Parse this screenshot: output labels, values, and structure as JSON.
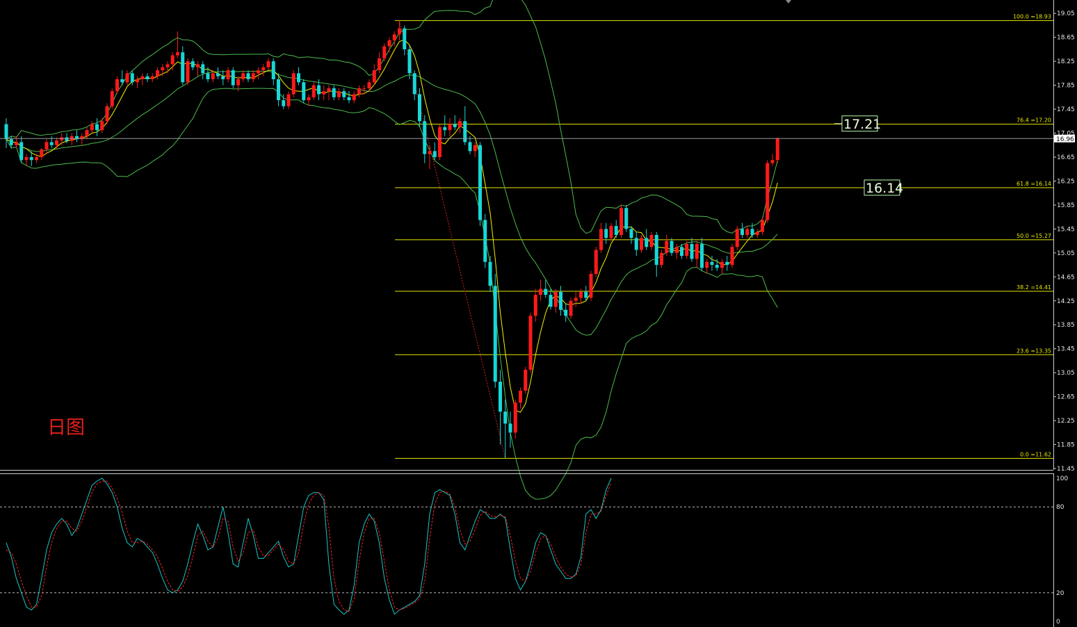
{
  "caption": "日图",
  "colors": {
    "bull": "#ff1a1a",
    "bear": "#19d7d7",
    "bollinger": "#4dbb4d",
    "ma": "#f5f500",
    "fib": "#e8e800",
    "stoch_k": "#19c8c8",
    "stoch_d": "#ff2020",
    "axis_text": "#e6e6e6"
  },
  "chart_data": [
    {
      "type": "candlestick",
      "title": "",
      "ylim": [
        11.45,
        19.25
      ],
      "yticks": [
        "19.05",
        "18.65",
        "18.25",
        "17.85",
        "17.45",
        "17.05",
        "16.65",
        "16.25",
        "15.85",
        "15.45",
        "15.05",
        "14.65",
        "14.25",
        "13.85",
        "13.45",
        "13.05",
        "12.65",
        "12.25",
        "11.85",
        "11.45"
      ],
      "current_price": "16.96",
      "current_price_value": 16.96,
      "fib_levels": [
        {
          "value": 18.93,
          "label": "100.0  =18.93"
        },
        {
          "value": 17.2,
          "label": "76.4  =17.20"
        },
        {
          "value": 16.14,
          "label": "61.8  =16.14"
        },
        {
          "value": 15.27,
          "label": "50.0  =15.27"
        },
        {
          "value": 14.41,
          "label": "38.2  =14.41"
        },
        {
          "value": 13.35,
          "label": "23.6  =13.35"
        },
        {
          "value": 11.62,
          "label": "0.0  =11.62"
        }
      ],
      "price_tags": [
        {
          "text": "17.21",
          "value": 17.21
        },
        {
          "text": "16.14",
          "value": 16.14
        }
      ],
      "candles": [
        [
          17.2,
          17.3,
          16.8,
          16.95
        ],
        [
          16.95,
          17.0,
          16.8,
          16.85
        ],
        [
          16.85,
          17.0,
          16.8,
          16.9
        ],
        [
          16.9,
          17.0,
          16.55,
          16.6
        ],
        [
          16.6,
          16.7,
          16.5,
          16.65
        ],
        [
          16.65,
          16.75,
          16.5,
          16.6
        ],
        [
          16.6,
          16.7,
          16.55,
          16.65
        ],
        [
          16.65,
          16.8,
          16.6,
          16.78
        ],
        [
          16.78,
          16.95,
          16.7,
          16.9
        ],
        [
          16.9,
          17.0,
          16.8,
          16.85
        ],
        [
          16.85,
          16.98,
          16.78,
          16.93
        ],
        [
          16.93,
          17.05,
          16.85,
          16.98
        ],
        [
          16.98,
          17.05,
          16.88,
          16.92
        ],
        [
          16.92,
          17.05,
          16.85,
          17.0
        ],
        [
          17.0,
          17.1,
          16.9,
          16.95
        ],
        [
          16.95,
          17.05,
          16.85,
          17.0
        ],
        [
          17.0,
          17.15,
          16.95,
          17.1
        ],
        [
          17.1,
          17.25,
          17.05,
          17.2
        ],
        [
          17.2,
          17.3,
          17.0,
          17.1
        ],
        [
          17.1,
          17.3,
          17.05,
          17.25
        ],
        [
          17.25,
          17.55,
          17.2,
          17.5
        ],
        [
          17.5,
          17.8,
          17.45,
          17.75
        ],
        [
          17.75,
          18.0,
          17.7,
          17.95
        ],
        [
          17.95,
          18.1,
          17.85,
          17.9
        ],
        [
          17.9,
          18.1,
          17.85,
          18.05
        ],
        [
          18.05,
          18.1,
          17.85,
          17.9
        ],
        [
          17.9,
          18.0,
          17.8,
          17.95
        ],
        [
          17.95,
          18.05,
          17.85,
          18.0
        ],
        [
          18.0,
          18.05,
          17.9,
          17.95
        ],
        [
          17.95,
          18.05,
          17.9,
          18.0
        ],
        [
          18.0,
          18.15,
          17.95,
          18.1
        ],
        [
          18.1,
          18.2,
          18.0,
          18.15
        ],
        [
          18.15,
          18.25,
          18.05,
          18.2
        ],
        [
          18.2,
          18.4,
          18.1,
          18.35
        ],
        [
          18.35,
          18.75,
          18.3,
          18.4
        ],
        [
          18.4,
          18.5,
          17.85,
          17.9
        ],
        [
          17.9,
          18.3,
          17.85,
          18.25
        ],
        [
          18.25,
          18.3,
          18.1,
          18.15
        ],
        [
          18.15,
          18.25,
          18.0,
          18.2
        ],
        [
          18.2,
          18.25,
          17.95,
          18.05
        ],
        [
          18.05,
          18.15,
          17.9,
          17.95
        ],
        [
          17.95,
          18.1,
          17.9,
          18.05
        ],
        [
          18.05,
          18.15,
          17.95,
          18.0
        ],
        [
          18.0,
          18.1,
          17.85,
          17.95
        ],
        [
          17.95,
          18.15,
          17.9,
          18.1
        ],
        [
          18.1,
          18.15,
          17.8,
          17.85
        ],
        [
          17.85,
          18.0,
          17.75,
          17.95
        ],
        [
          17.95,
          18.1,
          17.9,
          18.05
        ],
        [
          18.05,
          18.1,
          17.9,
          17.95
        ],
        [
          17.95,
          18.1,
          17.9,
          18.05
        ],
        [
          18.05,
          18.15,
          17.95,
          18.1
        ],
        [
          18.1,
          18.2,
          18.0,
          18.15
        ],
        [
          18.15,
          18.3,
          18.1,
          18.25
        ],
        [
          18.25,
          18.3,
          17.85,
          17.95
        ],
        [
          17.95,
          18.05,
          17.5,
          17.6
        ],
        [
          17.6,
          17.7,
          17.45,
          17.5
        ],
        [
          17.5,
          17.75,
          17.45,
          17.7
        ],
        [
          17.7,
          18.1,
          17.65,
          18.05
        ],
        [
          18.05,
          18.15,
          17.85,
          17.9
        ],
        [
          17.9,
          17.95,
          17.55,
          17.6
        ],
        [
          17.6,
          17.7,
          17.5,
          17.65
        ],
        [
          17.65,
          17.9,
          17.6,
          17.85
        ],
        [
          17.85,
          17.95,
          17.6,
          17.7
        ],
        [
          17.7,
          17.85,
          17.6,
          17.75
        ],
        [
          17.75,
          17.85,
          17.6,
          17.8
        ],
        [
          17.8,
          17.85,
          17.6,
          17.65
        ],
        [
          17.65,
          17.8,
          17.6,
          17.75
        ],
        [
          17.75,
          17.8,
          17.6,
          17.65
        ],
        [
          17.65,
          17.75,
          17.55,
          17.6
        ],
        [
          17.6,
          17.75,
          17.55,
          17.7
        ],
        [
          17.7,
          17.85,
          17.65,
          17.8
        ],
        [
          17.8,
          17.85,
          17.7,
          17.8
        ],
        [
          17.8,
          17.95,
          17.75,
          17.9
        ],
        [
          17.9,
          18.2,
          17.85,
          18.1
        ],
        [
          18.1,
          18.4,
          18.05,
          18.3
        ],
        [
          18.3,
          18.55,
          18.25,
          18.5
        ],
        [
          18.5,
          18.65,
          18.4,
          18.6
        ],
        [
          18.6,
          18.75,
          18.5,
          18.7
        ],
        [
          18.7,
          18.93,
          18.6,
          18.8
        ],
        [
          18.8,
          18.85,
          18.35,
          18.45
        ],
        [
          18.45,
          18.5,
          17.95,
          18.05
        ],
        [
          18.05,
          18.1,
          17.6,
          17.7
        ],
        [
          17.7,
          17.8,
          17.15,
          17.25
        ],
        [
          17.25,
          17.35,
          16.55,
          16.7
        ],
        [
          16.7,
          16.85,
          16.45,
          16.75
        ],
        [
          16.75,
          16.9,
          16.6,
          16.65
        ],
        [
          16.65,
          17.2,
          16.6,
          17.15
        ],
        [
          17.15,
          17.35,
          17.0,
          17.1
        ],
        [
          17.1,
          17.3,
          17.0,
          17.2
        ],
        [
          17.2,
          17.35,
          17.1,
          17.15
        ],
        [
          17.15,
          17.3,
          17.05,
          17.25
        ],
        [
          17.25,
          17.5,
          16.85,
          16.9
        ],
        [
          16.9,
          17.0,
          16.7,
          16.75
        ],
        [
          16.75,
          16.9,
          16.65,
          16.85
        ],
        [
          16.85,
          16.9,
          15.5,
          15.6
        ],
        [
          15.6,
          15.7,
          14.8,
          14.9
        ],
        [
          14.9,
          15.0,
          14.4,
          14.5
        ],
        [
          14.5,
          14.7,
          12.8,
          12.9
        ],
        [
          12.9,
          13.1,
          11.85,
          12.4
        ],
        [
          12.4,
          12.6,
          11.62,
          12.2
        ],
        [
          12.2,
          12.4,
          11.8,
          12.05
        ],
        [
          12.05,
          12.6,
          11.95,
          12.55
        ],
        [
          12.55,
          12.8,
          12.45,
          12.75
        ],
        [
          12.75,
          13.15,
          12.7,
          13.1
        ],
        [
          13.1,
          14.05,
          13.05,
          14.0
        ],
        [
          14.0,
          14.45,
          13.9,
          14.35
        ],
        [
          14.35,
          14.6,
          14.25,
          14.45
        ],
        [
          14.45,
          14.6,
          14.3,
          14.35
        ],
        [
          14.35,
          14.45,
          14.1,
          14.15
        ],
        [
          14.15,
          14.45,
          14.05,
          14.4
        ],
        [
          14.4,
          14.5,
          14.0,
          14.1
        ],
        [
          14.1,
          14.2,
          13.9,
          14.0
        ],
        [
          14.0,
          14.3,
          13.95,
          14.25
        ],
        [
          14.25,
          14.4,
          14.15,
          14.3
        ],
        [
          14.3,
          14.45,
          14.2,
          14.4
        ],
        [
          14.4,
          14.5,
          14.25,
          14.3
        ],
        [
          14.3,
          14.75,
          14.25,
          14.7
        ],
        [
          14.7,
          15.15,
          14.65,
          15.1
        ],
        [
          15.1,
          15.55,
          15.05,
          15.45
        ],
        [
          15.45,
          15.55,
          15.2,
          15.3
        ],
        [
          15.3,
          15.55,
          15.25,
          15.5
        ],
        [
          15.5,
          15.6,
          15.3,
          15.35
        ],
        [
          15.35,
          15.85,
          15.3,
          15.8
        ],
        [
          15.8,
          15.85,
          15.4,
          15.45
        ],
        [
          15.45,
          15.5,
          15.2,
          15.3
        ],
        [
          15.3,
          15.4,
          15.0,
          15.1
        ],
        [
          15.1,
          15.35,
          15.05,
          15.3
        ],
        [
          15.3,
          15.45,
          15.1,
          15.15
        ],
        [
          15.15,
          15.4,
          15.1,
          15.35
        ],
        [
          15.35,
          15.4,
          14.65,
          14.85
        ],
        [
          14.85,
          15.1,
          14.8,
          15.05
        ],
        [
          15.05,
          15.35,
          15.0,
          15.25
        ],
        [
          15.25,
          15.3,
          15.0,
          15.05
        ],
        [
          15.05,
          15.2,
          14.95,
          15.15
        ],
        [
          15.15,
          15.2,
          14.95,
          15.0
        ],
        [
          15.0,
          15.25,
          14.95,
          15.2
        ],
        [
          15.2,
          15.3,
          14.9,
          14.95
        ],
        [
          14.95,
          15.25,
          14.8,
          15.2
        ],
        [
          15.2,
          15.3,
          14.75,
          14.8
        ],
        [
          14.8,
          14.95,
          14.7,
          14.9
        ],
        [
          14.9,
          15.0,
          14.75,
          14.85
        ],
        [
          14.85,
          14.95,
          14.75,
          14.8
        ],
        [
          14.8,
          14.95,
          14.7,
          14.9
        ],
        [
          14.9,
          15.0,
          14.75,
          14.85
        ],
        [
          14.85,
          15.2,
          14.8,
          15.15
        ],
        [
          15.15,
          15.5,
          15.1,
          15.45
        ],
        [
          15.45,
          15.55,
          15.3,
          15.35
        ],
        [
          15.35,
          15.5,
          15.3,
          15.45
        ],
        [
          15.45,
          15.55,
          15.3,
          15.35
        ],
        [
          15.35,
          15.45,
          15.3,
          15.4
        ],
        [
          15.4,
          15.65,
          15.35,
          15.6
        ],
        [
          15.6,
          16.6,
          15.55,
          16.55
        ],
        [
          16.55,
          16.7,
          16.5,
          16.6
        ],
        [
          16.6,
          16.98,
          16.55,
          16.96
        ]
      ]
    },
    {
      "type": "line",
      "title": "",
      "ylim": [
        0,
        100
      ],
      "yticks": [
        "100",
        "80",
        "20",
        "0"
      ],
      "levels": [
        80,
        20
      ],
      "series": [
        {
          "key": "k",
          "values": [
            55,
            45,
            30,
            20,
            10,
            8,
            12,
            30,
            50,
            62,
            68,
            72,
            68,
            60,
            65,
            75,
            85,
            95,
            98,
            100,
            96,
            90,
            80,
            65,
            55,
            52,
            58,
            56,
            52,
            48,
            40,
            30,
            22,
            20,
            22,
            28,
            40,
            55,
            68,
            60,
            50,
            52,
            66,
            80,
            62,
            40,
            38,
            55,
            72,
            60,
            44,
            44,
            48,
            52,
            56,
            45,
            38,
            40,
            60,
            80,
            88,
            90,
            90,
            85,
            40,
            12,
            8,
            5,
            8,
            25,
            55,
            68,
            75,
            70,
            55,
            30,
            15,
            5,
            8,
            10,
            12,
            14,
            18,
            40,
            75,
            90,
            92,
            90,
            88,
            75,
            55,
            50,
            60,
            70,
            78,
            76,
            72,
            72,
            75,
            72,
            50,
            30,
            22,
            28,
            40,
            55,
            62,
            60,
            50,
            40,
            35,
            30,
            30,
            33,
            45,
            75,
            78,
            72,
            78,
            92,
            100
          ]
        },
        {
          "key": "d",
          "values": [
            50,
            48,
            40,
            28,
            18,
            10,
            10,
            18,
            38,
            55,
            65,
            70,
            70,
            65,
            63,
            70,
            80,
            90,
            96,
            98,
            98,
            93,
            86,
            76,
            63,
            55,
            55,
            56,
            54,
            50,
            45,
            37,
            28,
            22,
            21,
            24,
            32,
            45,
            60,
            63,
            56,
            52,
            58,
            72,
            70,
            52,
            42,
            48,
            62,
            64,
            52,
            46,
            46,
            50,
            54,
            50,
            42,
            40,
            48,
            68,
            82,
            88,
            90,
            88,
            66,
            30,
            14,
            8,
            7,
            16,
            42,
            62,
            72,
            72,
            62,
            42,
            22,
            10,
            8,
            9,
            11,
            13,
            16,
            28,
            58,
            82,
            90,
            91,
            89,
            80,
            64,
            54,
            56,
            64,
            74,
            77,
            74,
            73,
            74,
            73,
            60,
            42,
            30,
            28,
            35,
            48,
            58,
            60,
            54,
            45,
            38,
            33,
            31,
            32,
            40,
            62,
            75,
            75,
            77,
            88,
            97
          ]
        }
      ]
    }
  ]
}
